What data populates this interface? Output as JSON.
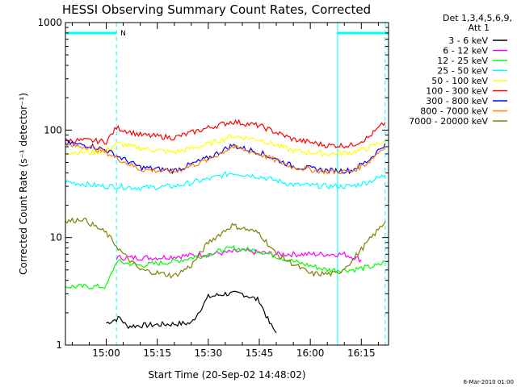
{
  "chart_data": {
    "type": "line",
    "title": "HESSI Observing Summary Count Rates, Corrected",
    "xlabel": "Start Time (20-Sep-02 14:48:02)",
    "ylabel": "Corrected Count Rate (s⁻¹ detector⁻¹)",
    "y_scale": "log",
    "ylim": [
      1,
      1000
    ],
    "xlim": [
      "14:48",
      "16:23"
    ],
    "x_ticks": [
      "15:00",
      "15:15",
      "15:30",
      "15:45",
      "16:00",
      "16:15"
    ],
    "y_ticks": [
      "1",
      "10",
      "100",
      "1000"
    ],
    "grid": false,
    "legend_placement": "right",
    "legend_header": [
      "Det 1,3,4,5,6,9,",
      "Att 1"
    ],
    "footer": "6-Mar-2010 01:00",
    "flag_label": "N",
    "night_intervals": [
      {
        "start": "14:48",
        "end": "15:03"
      },
      {
        "start": "16:08",
        "end": "16:23"
      }
    ],
    "markers": {
      "solid_cyan": [
        "14:48",
        "16:08"
      ],
      "dashed_cyan": [
        "15:03",
        "16:22"
      ]
    },
    "series": [
      {
        "name": "3 - 6 keV",
        "color": "#000000",
        "x": [
          "15:00",
          "15:02",
          "15:04",
          "15:06",
          "15:25",
          "15:30",
          "15:35",
          "15:40",
          "15:45",
          "15:48",
          "15:50"
        ],
        "y": [
          1.6,
          1.7,
          1.8,
          1.5,
          1.6,
          2.8,
          3.0,
          3.0,
          2.6,
          1.6,
          1.3
        ]
      },
      {
        "name": "6 - 12 keV",
        "color": "#ff00ff",
        "x": [
          "15:03",
          "15:15",
          "15:30",
          "15:40",
          "15:50",
          "16:00",
          "16:10",
          "16:15"
        ],
        "y": [
          6.5,
          6.5,
          7.0,
          7.5,
          7.0,
          7.0,
          7.0,
          6.2
        ]
      },
      {
        "name": "12 - 25 keV",
        "color": "#00ff00",
        "x": [
          "14:48",
          "14:55",
          "15:00",
          "15:03",
          "15:10",
          "15:20",
          "15:30",
          "15:37",
          "15:45",
          "15:55",
          "16:05",
          "16:12",
          "16:20",
          "16:22"
        ],
        "y": [
          3.5,
          3.5,
          3.5,
          6.0,
          5.5,
          6.0,
          7.0,
          8.0,
          7.5,
          6.0,
          5.0,
          5.0,
          5.5,
          6.0
        ]
      },
      {
        "name": "25 - 50 keV",
        "color": "#00ffff",
        "x": [
          "14:48",
          "14:55",
          "15:00",
          "15:03",
          "15:10",
          "15:20",
          "15:30",
          "15:37",
          "15:45",
          "15:55",
          "16:05",
          "16:12",
          "16:17",
          "16:22"
        ],
        "y": [
          33,
          31,
          30,
          30,
          29,
          30,
          35,
          40,
          37,
          31,
          30,
          30,
          33,
          38
        ]
      },
      {
        "name": "50 - 100 keV",
        "color": "#ffff00",
        "x": [
          "14:48",
          "14:55",
          "15:00",
          "15:03",
          "15:10",
          "15:20",
          "15:30",
          "15:37",
          "15:45",
          "15:55",
          "16:05",
          "16:12",
          "16:17",
          "16:22"
        ],
        "y": [
          62,
          62,
          64,
          75,
          68,
          62,
          74,
          88,
          82,
          64,
          60,
          62,
          68,
          80
        ]
      },
      {
        "name": "100 - 300 keV",
        "color": "#ff0000",
        "x": [
          "14:48",
          "14:55",
          "15:00",
          "15:03",
          "15:10",
          "15:20",
          "15:30",
          "15:37",
          "15:45",
          "15:55",
          "16:05",
          "16:12",
          "16:17",
          "16:22"
        ],
        "y": [
          80,
          80,
          78,
          105,
          90,
          85,
          105,
          120,
          110,
          82,
          72,
          72,
          85,
          118
        ]
      },
      {
        "name": "300 - 800 keV",
        "color": "#0000ff",
        "x": [
          "14:48",
          "14:55",
          "15:00",
          "15:03",
          "15:10",
          "15:20",
          "15:30",
          "15:37",
          "15:45",
          "15:55",
          "16:05",
          "16:12",
          "16:17",
          "16:22"
        ],
        "y": [
          75,
          72,
          65,
          58,
          45,
          42,
          55,
          72,
          62,
          46,
          42,
          42,
          52,
          75
        ]
      },
      {
        "name": "800 - 7000 keV",
        "color": "#ff8000",
        "x": [
          "14:48",
          "14:55",
          "15:00",
          "15:03",
          "15:10",
          "15:20",
          "15:30",
          "15:37",
          "15:45",
          "15:55",
          "16:05",
          "16:12",
          "16:17",
          "16:22"
        ],
        "y": [
          72,
          70,
          62,
          55,
          43,
          41,
          53,
          70,
          60,
          45,
          41,
          41,
          50,
          72
        ]
      },
      {
        "name": "7000 - 20000 keV",
        "color": "#808000",
        "x": [
          "14:48",
          "14:53",
          "15:00",
          "15:05",
          "15:10",
          "15:20",
          "15:25",
          "15:30",
          "15:37",
          "15:45",
          "15:50",
          "16:00",
          "16:08",
          "16:12",
          "16:18",
          "16:22"
        ],
        "y": [
          14,
          15,
          11,
          7,
          5,
          4.4,
          5.5,
          9,
          13,
          11,
          7,
          4.6,
          4.6,
          6,
          10,
          14
        ]
      }
    ]
  }
}
